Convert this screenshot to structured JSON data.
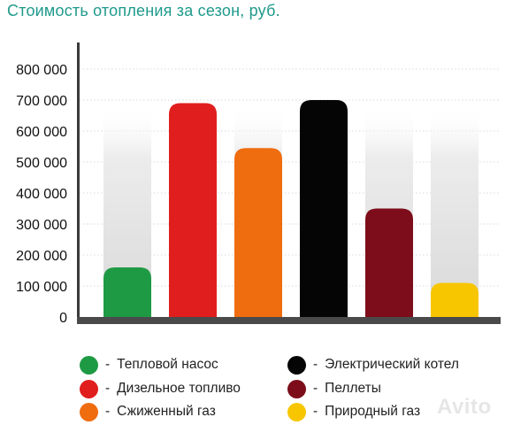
{
  "title": "Стоимость отопления за сезон, руб.",
  "chart_data": {
    "type": "bar",
    "title": "Стоимость отопления за сезон, руб.",
    "xlabel": "",
    "ylabel": "",
    "ylim": [
      0,
      800000
    ],
    "y_ticks": [
      0,
      100000,
      200000,
      300000,
      400000,
      500000,
      600000,
      700000,
      800000
    ],
    "y_tick_labels": [
      "0",
      "100 000",
      "200 000",
      "300 000",
      "400 000",
      "500 000",
      "600 000",
      "700 000",
      "800 000"
    ],
    "grid": true,
    "legend_position": "bottom",
    "categories": [
      "Тепловой насос",
      "Дизельное топливо",
      "Сжиженный газ",
      "Электрический котел",
      "Пеллеты",
      "Природный газ"
    ],
    "values": [
      160000,
      690000,
      545000,
      700000,
      350000,
      110000
    ],
    "colors": [
      "#1f9a44",
      "#e01e1e",
      "#ef6c0f",
      "#050505",
      "#7d0d1a",
      "#f7c600"
    ],
    "background_column_color": "#e6e6e6"
  },
  "legend": {
    "separator": "-",
    "items": [
      {
        "label": "Тепловой насос",
        "color": "#1f9a44"
      },
      {
        "label": "Дизельное топливо",
        "color": "#e01e1e"
      },
      {
        "label": "Сжиженный газ",
        "color": "#ef6c0f"
      },
      {
        "label": "Электрический котел",
        "color": "#050505"
      },
      {
        "label": "Пеллеты",
        "color": "#7d0d1a"
      },
      {
        "label": "Природный газ",
        "color": "#f7c600"
      }
    ]
  },
  "watermark": "Avito"
}
